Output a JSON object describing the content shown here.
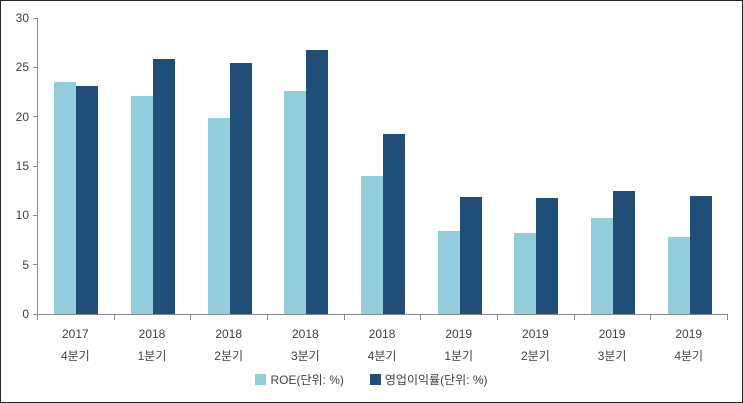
{
  "chart_data": {
    "type": "bar",
    "title": "",
    "categories": [
      {
        "line1": "2017",
        "line2": "4분기"
      },
      {
        "line1": "2018",
        "line2": "1분기"
      },
      {
        "line1": "2018",
        "line2": "2분기"
      },
      {
        "line1": "2018",
        "line2": "3분기"
      },
      {
        "line1": "2018",
        "line2": "4분기"
      },
      {
        "line1": "2019",
        "line2": "1분기"
      },
      {
        "line1": "2019",
        "line2": "2분기"
      },
      {
        "line1": "2019",
        "line2": "3분기"
      },
      {
        "line1": "2019",
        "line2": "4분기"
      }
    ],
    "series": [
      {
        "key": "roe",
        "name": "ROE(단위: %)",
        "color": "#92CDDC",
        "values": [
          23.5,
          22.1,
          19.9,
          22.6,
          14.0,
          8.4,
          8.2,
          9.7,
          7.8
        ]
      },
      {
        "key": "opm",
        "name": "영업이익률(단위: %)",
        "color": "#1F4E79",
        "values": [
          23.1,
          25.8,
          25.4,
          26.8,
          18.2,
          11.9,
          11.8,
          12.5,
          12.0
        ]
      }
    ],
    "xlabel": "",
    "ylabel": "",
    "ylim": [
      0,
      30
    ],
    "yticks": [
      0,
      5,
      10,
      15,
      20,
      25,
      30
    ],
    "grid": false,
    "legend_position": "bottom"
  },
  "colors": {
    "axis": "#898989",
    "text": "#3f3f3f",
    "frame_border": "#262626",
    "background": "#ffffff"
  }
}
